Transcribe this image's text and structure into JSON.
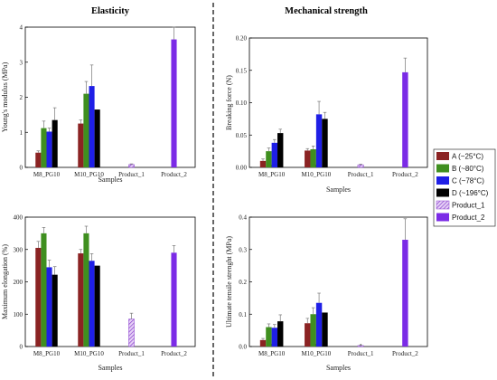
{
  "sections": {
    "left_title": "Elasticity",
    "right_title": "Mechanical strength"
  },
  "legend": [
    {
      "label": "A (~25°C)",
      "color": "#8b2323",
      "hatch": false
    },
    {
      "label": "B (~80°C)",
      "color": "#3f8f1f",
      "hatch": false
    },
    {
      "label": "C (~78°C)",
      "color": "#1f1fe6",
      "hatch": false
    },
    {
      "label": "D (~196°C)",
      "color": "#000000",
      "hatch": false
    },
    {
      "label": "Product_1",
      "color": "#a05bd6",
      "hatch": true
    },
    {
      "label": "Product_2",
      "color": "#7b2be6",
      "hatch": false
    }
  ],
  "chart_data": [
    {
      "type": "bar",
      "panel": "top-left",
      "xlabel": "Samples",
      "ylabel": "Young's modulus (MPa)",
      "ylim": [
        0,
        4
      ],
      "yticks": [
        "0",
        "1",
        "2",
        "3",
        "4"
      ],
      "categories": [
        "M8_PG10",
        "M10_PG10",
        "Product_1",
        "Product_2"
      ],
      "bars": [
        {
          "category": "M8_PG10",
          "series": "A",
          "value": 0.42,
          "err": 0.05
        },
        {
          "category": "M8_PG10",
          "series": "B",
          "value": 1.12,
          "err": 0.2
        },
        {
          "category": "M8_PG10",
          "series": "C",
          "value": 1.02,
          "err": 0.1
        },
        {
          "category": "M8_PG10",
          "series": "D",
          "value": 1.35,
          "err": 0.35
        },
        {
          "category": "M10_PG10",
          "series": "A",
          "value": 1.25,
          "err": 0.1
        },
        {
          "category": "M10_PG10",
          "series": "B",
          "value": 2.1,
          "err": 0.35
        },
        {
          "category": "M10_PG10",
          "series": "C",
          "value": 2.32,
          "err": 0.6
        },
        {
          "category": "M10_PG10",
          "series": "D",
          "value": 1.65,
          "err": 0.0
        },
        {
          "category": "Product_1",
          "series": "Product_1",
          "value": 0.08,
          "err": 0.02
        },
        {
          "category": "Product_2",
          "series": "Product_2",
          "value": 3.65,
          "err": 0.35
        }
      ]
    },
    {
      "type": "bar",
      "panel": "top-right",
      "xlabel": "Samples",
      "ylabel": "Breaking force (N)",
      "ylim": [
        0,
        0.2
      ],
      "yticks": [
        "0.00",
        "0.05",
        "0.10",
        "0.15",
        "0.20"
      ],
      "categories": [
        "M8_PG10",
        "M10_PG10",
        "Product_1",
        "Product_2"
      ],
      "bars": [
        {
          "category": "M8_PG10",
          "series": "A",
          "value": 0.01,
          "err": 0.003
        },
        {
          "category": "M8_PG10",
          "series": "B",
          "value": 0.025,
          "err": 0.005
        },
        {
          "category": "M8_PG10",
          "series": "C",
          "value": 0.038,
          "err": 0.005
        },
        {
          "category": "M8_PG10",
          "series": "D",
          "value": 0.053,
          "err": 0.006
        },
        {
          "category": "M10_PG10",
          "series": "A",
          "value": 0.026,
          "err": 0.003
        },
        {
          "category": "M10_PG10",
          "series": "B",
          "value": 0.028,
          "err": 0.005
        },
        {
          "category": "M10_PG10",
          "series": "C",
          "value": 0.082,
          "err": 0.02
        },
        {
          "category": "M10_PG10",
          "series": "D",
          "value": 0.075,
          "err": 0.01
        },
        {
          "category": "Product_1",
          "series": "Product_1",
          "value": 0.004,
          "err": 0.001
        },
        {
          "category": "Product_2",
          "series": "Product_2",
          "value": 0.147,
          "err": 0.022
        }
      ]
    },
    {
      "type": "bar",
      "panel": "bottom-left",
      "xlabel": "Samples",
      "ylabel": "Maximum elongation (%)",
      "ylim": [
        0,
        400
      ],
      "yticks": [
        "0",
        "100",
        "200",
        "300",
        "400"
      ],
      "categories": [
        "M8_PG10",
        "M10_PG10",
        "Product_1",
        "Product_2"
      ],
      "bars": [
        {
          "category": "M8_PG10",
          "series": "A",
          "value": 305,
          "err": 20
        },
        {
          "category": "M8_PG10",
          "series": "B",
          "value": 350,
          "err": 18
        },
        {
          "category": "M8_PG10",
          "series": "C",
          "value": 245,
          "err": 22
        },
        {
          "category": "M8_PG10",
          "series": "D",
          "value": 222,
          "err": 25
        },
        {
          "category": "M10_PG10",
          "series": "A",
          "value": 288,
          "err": 12
        },
        {
          "category": "M10_PG10",
          "series": "B",
          "value": 350,
          "err": 22
        },
        {
          "category": "M10_PG10",
          "series": "C",
          "value": 265,
          "err": 22
        },
        {
          "category": "M10_PG10",
          "series": "D",
          "value": 250,
          "err": 0
        },
        {
          "category": "Product_1",
          "series": "Product_1",
          "value": 85,
          "err": 18
        },
        {
          "category": "Product_2",
          "series": "Product_2",
          "value": 290,
          "err": 22
        }
      ]
    },
    {
      "type": "bar",
      "panel": "bottom-right",
      "xlabel": "Samples",
      "ylabel": "Ultimate tensile strenght (MPa)",
      "ylim": [
        0,
        0.4
      ],
      "yticks": [
        "0.0",
        "0.1",
        "0.2",
        "0.3",
        "0.4"
      ],
      "categories": [
        "M8_PG10",
        "M10_PG10",
        "Product_1",
        "Product_2"
      ],
      "bars": [
        {
          "category": "M8_PG10",
          "series": "A",
          "value": 0.02,
          "err": 0.005
        },
        {
          "category": "M8_PG10",
          "series": "B",
          "value": 0.06,
          "err": 0.01
        },
        {
          "category": "M8_PG10",
          "series": "C",
          "value": 0.058,
          "err": 0.01
        },
        {
          "category": "M8_PG10",
          "series": "D",
          "value": 0.078,
          "err": 0.02
        },
        {
          "category": "M10_PG10",
          "series": "A",
          "value": 0.072,
          "err": 0.015
        },
        {
          "category": "M10_PG10",
          "series": "B",
          "value": 0.1,
          "err": 0.02
        },
        {
          "category": "M10_PG10",
          "series": "C",
          "value": 0.135,
          "err": 0.03
        },
        {
          "category": "M10_PG10",
          "series": "D",
          "value": 0.105,
          "err": 0.0
        },
        {
          "category": "Product_1",
          "series": "Product_1",
          "value": 0.003,
          "err": 0.001
        },
        {
          "category": "Product_2",
          "series": "Product_2",
          "value": 0.33,
          "err": 0.065
        }
      ]
    }
  ]
}
